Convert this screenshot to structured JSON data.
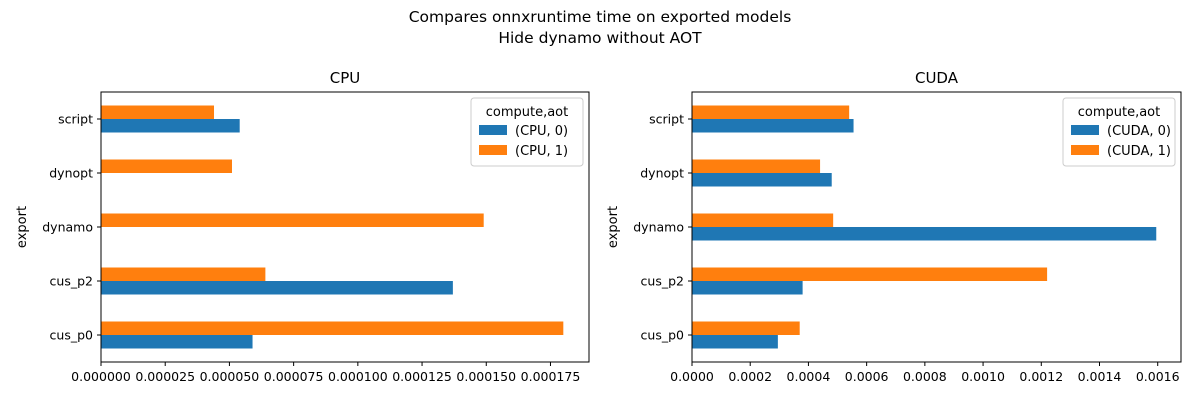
{
  "suptitle": [
    "Compares onnxruntime time on exported models",
    "Hide dynamo without AOT"
  ],
  "colors": {
    "series0": "#1f77b4",
    "series1": "#ff7f0e"
  },
  "chart_data": [
    {
      "type": "bar",
      "orientation": "horizontal",
      "title": "CPU",
      "ylabel": "export",
      "xlabel": "",
      "categories": [
        "cus_p0",
        "cus_p2",
        "dynamo",
        "dynopt",
        "script"
      ],
      "series": [
        {
          "name": "(CPU, 0)",
          "values": [
            5.9e-05,
            0.000137,
            null,
            null,
            5.4e-05
          ]
        },
        {
          "name": "(CPU, 1)",
          "values": [
            0.00018,
            6.4e-05,
            0.000149,
            5.1e-05,
            4.4e-05
          ]
        }
      ],
      "xlim": [
        0,
        0.00019
      ],
      "xticks": [
        "0.000000",
        "0.000025",
        "0.000050",
        "0.000075",
        "0.000100",
        "0.000125",
        "0.000150",
        "0.000175"
      ],
      "xtick_values": [
        0,
        2.5e-05,
        5e-05,
        7.5e-05,
        0.0001,
        0.000125,
        0.00015,
        0.000175
      ],
      "legend": {
        "title": "compute,aot",
        "placement": "upper right"
      }
    },
    {
      "type": "bar",
      "orientation": "horizontal",
      "title": "CUDA",
      "ylabel": "export",
      "xlabel": "",
      "categories": [
        "cus_p0",
        "cus_p2",
        "dynamo",
        "dynopt",
        "script"
      ],
      "series": [
        {
          "name": "(CUDA, 0)",
          "values": [
            0.000295,
            0.00038,
            0.001595,
            0.00048,
            0.000555
          ]
        },
        {
          "name": "(CUDA, 1)",
          "values": [
            0.00037,
            0.00122,
            0.000485,
            0.00044,
            0.00054
          ]
        }
      ],
      "xlim": [
        0,
        0.00168
      ],
      "xticks": [
        "0.0000",
        "0.0002",
        "0.0004",
        "0.0006",
        "0.0008",
        "0.0010",
        "0.0012",
        "0.0014",
        "0.0016"
      ],
      "xtick_values": [
        0,
        0.0002,
        0.0004,
        0.0006,
        0.0008,
        0.001,
        0.0012,
        0.0014,
        0.0016
      ],
      "legend": {
        "title": "compute,aot",
        "placement": "upper right"
      }
    }
  ]
}
